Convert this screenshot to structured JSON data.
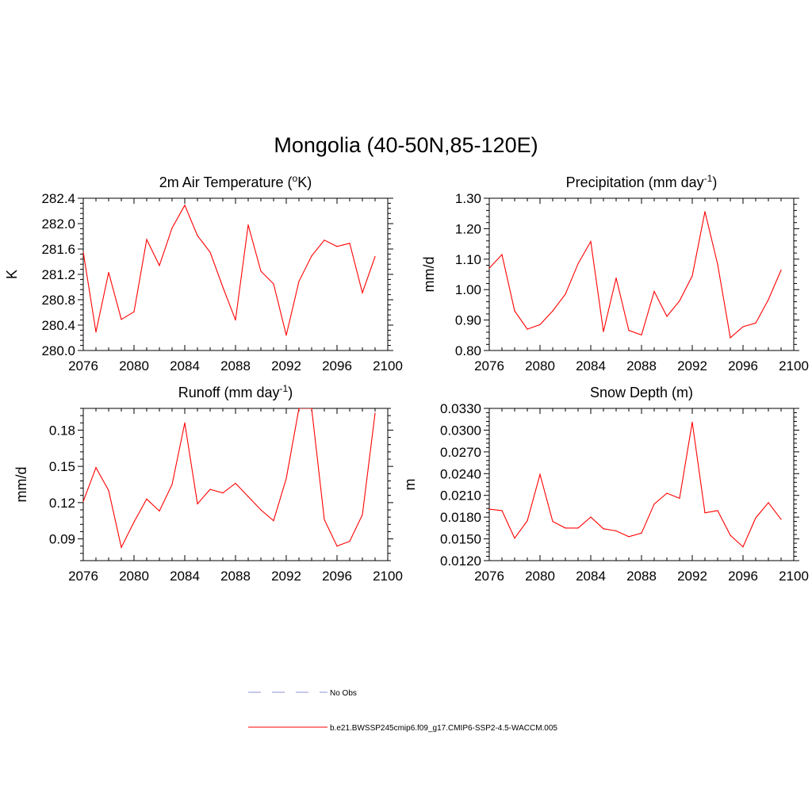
{
  "title": "Mongolia (40-50N,85-120E)",
  "chart_data": [
    {
      "type": "line",
      "title": "2m Air Temperature (",
      "title_sup": "o",
      "title_end": "K)",
      "ylabel": "K",
      "xlim": [
        2076,
        2100
      ],
      "ylim": [
        280.0,
        282.4
      ],
      "xticks": [
        2076,
        2080,
        2084,
        2088,
        2092,
        2096,
        2100
      ],
      "yticks": [
        280.0,
        280.4,
        280.8,
        281.2,
        281.6,
        282.0,
        282.4
      ],
      "ytick_labels": [
        "280.0",
        "280.4",
        "280.8",
        "281.2",
        "281.6",
        "282.0",
        "282.4"
      ],
      "x": [
        2076,
        2077,
        2078,
        2079,
        2080,
        2081,
        2082,
        2083,
        2084,
        2085,
        2086,
        2087,
        2088,
        2089,
        2090,
        2091,
        2092,
        2093,
        2094,
        2095,
        2096,
        2097,
        2098,
        2099
      ],
      "values": [
        281.55,
        280.29,
        281.23,
        280.49,
        280.61,
        281.75,
        281.34,
        281.93,
        282.29,
        281.81,
        281.55,
        281.0,
        280.48,
        281.98,
        281.25,
        281.05,
        280.24,
        281.09,
        281.49,
        281.74,
        281.64,
        281.69,
        280.91,
        281.48
      ],
      "series_color": "#ff0000"
    },
    {
      "type": "line",
      "title": "Precipitation (mm day",
      "title_sup": "-1",
      "title_end": ")",
      "ylabel": "mm/d",
      "xlim": [
        2076,
        2100
      ],
      "ylim": [
        0.8,
        1.3
      ],
      "xticks": [
        2076,
        2080,
        2084,
        2088,
        2092,
        2096,
        2100
      ],
      "yticks": [
        0.8,
        0.9,
        1.0,
        1.1,
        1.2,
        1.3
      ],
      "ytick_labels": [
        "0.80",
        "0.90",
        "1.00",
        "1.10",
        "1.20",
        "1.30"
      ],
      "x": [
        2076,
        2077,
        2078,
        2079,
        2080,
        2081,
        2082,
        2083,
        2084,
        2085,
        2086,
        2087,
        2088,
        2089,
        2090,
        2091,
        2092,
        2093,
        2094,
        2095,
        2096,
        2097,
        2098,
        2099
      ],
      "values": [
        1.07,
        1.115,
        0.93,
        0.87,
        0.885,
        0.93,
        0.985,
        1.085,
        1.158,
        0.862,
        1.038,
        0.866,
        0.851,
        0.994,
        0.912,
        0.963,
        1.045,
        1.256,
        1.083,
        0.842,
        0.878,
        0.89,
        0.967,
        1.064
      ],
      "series_color": "#ff0000"
    },
    {
      "type": "line",
      "title": "Runoff (mm day",
      "title_sup": "-1",
      "title_end": ")",
      "ylabel": "mm/d",
      "xlim": [
        2076,
        2100
      ],
      "ylim": [
        0.072,
        0.198
      ],
      "xticks": [
        2076,
        2080,
        2084,
        2088,
        2092,
        2096,
        2100
      ],
      "yticks": [
        0.09,
        0.12,
        0.15,
        0.18
      ],
      "ytick_labels": [
        "0.09",
        "0.12",
        "0.15",
        "0.18"
      ],
      "x": [
        2076,
        2077,
        2078,
        2079,
        2080,
        2081,
        2082,
        2083,
        2084,
        2085,
        2086,
        2087,
        2088,
        2089,
        2090,
        2091,
        2092,
        2093,
        2094,
        2095,
        2096,
        2097,
        2098,
        2099
      ],
      "values": [
        0.121,
        0.149,
        0.13,
        0.083,
        0.104,
        0.123,
        0.113,
        0.135,
        0.186,
        0.119,
        0.131,
        0.128,
        0.136,
        0.125,
        0.114,
        0.105,
        0.14,
        0.198,
        0.198,
        0.106,
        0.084,
        0.088,
        0.11,
        0.194
      ],
      "series_color": "#ff0000"
    },
    {
      "type": "line",
      "title": "Snow Depth (m)",
      "title_sup": "",
      "title_end": "",
      "ylabel": "m",
      "xlim": [
        2076,
        2100
      ],
      "ylim": [
        0.012,
        0.033
      ],
      "xticks": [
        2076,
        2080,
        2084,
        2088,
        2092,
        2096,
        2100
      ],
      "yticks": [
        0.012,
        0.015,
        0.018,
        0.021,
        0.024,
        0.027,
        0.03,
        0.033
      ],
      "ytick_labels": [
        "0.0120",
        "0.0150",
        "0.0180",
        "0.0210",
        "0.0240",
        "0.0270",
        "0.0300",
        "0.0330"
      ],
      "x": [
        2076,
        2077,
        2078,
        2079,
        2080,
        2081,
        2082,
        2083,
        2084,
        2085,
        2086,
        2087,
        2088,
        2089,
        2090,
        2091,
        2092,
        2093,
        2094,
        2095,
        2096,
        2097,
        2098,
        2099
      ],
      "values": [
        0.0191,
        0.0189,
        0.0151,
        0.0175,
        0.0239,
        0.0174,
        0.0165,
        0.0165,
        0.018,
        0.0164,
        0.0161,
        0.0153,
        0.0158,
        0.0198,
        0.0213,
        0.0206,
        0.0311,
        0.0186,
        0.0189,
        0.0155,
        0.0139,
        0.0179,
        0.02,
        0.0177
      ],
      "series_color": "#ff0000"
    }
  ],
  "legend": [
    {
      "label": "No Obs",
      "style": "dashed",
      "color": "#a8a8e0"
    },
    {
      "label": "b.e21.BWSSP245cmip6.f09_g17.CMIP6-SSP2-4.5-WACCM.005",
      "style": "solid",
      "color": "#ff0000"
    }
  ]
}
